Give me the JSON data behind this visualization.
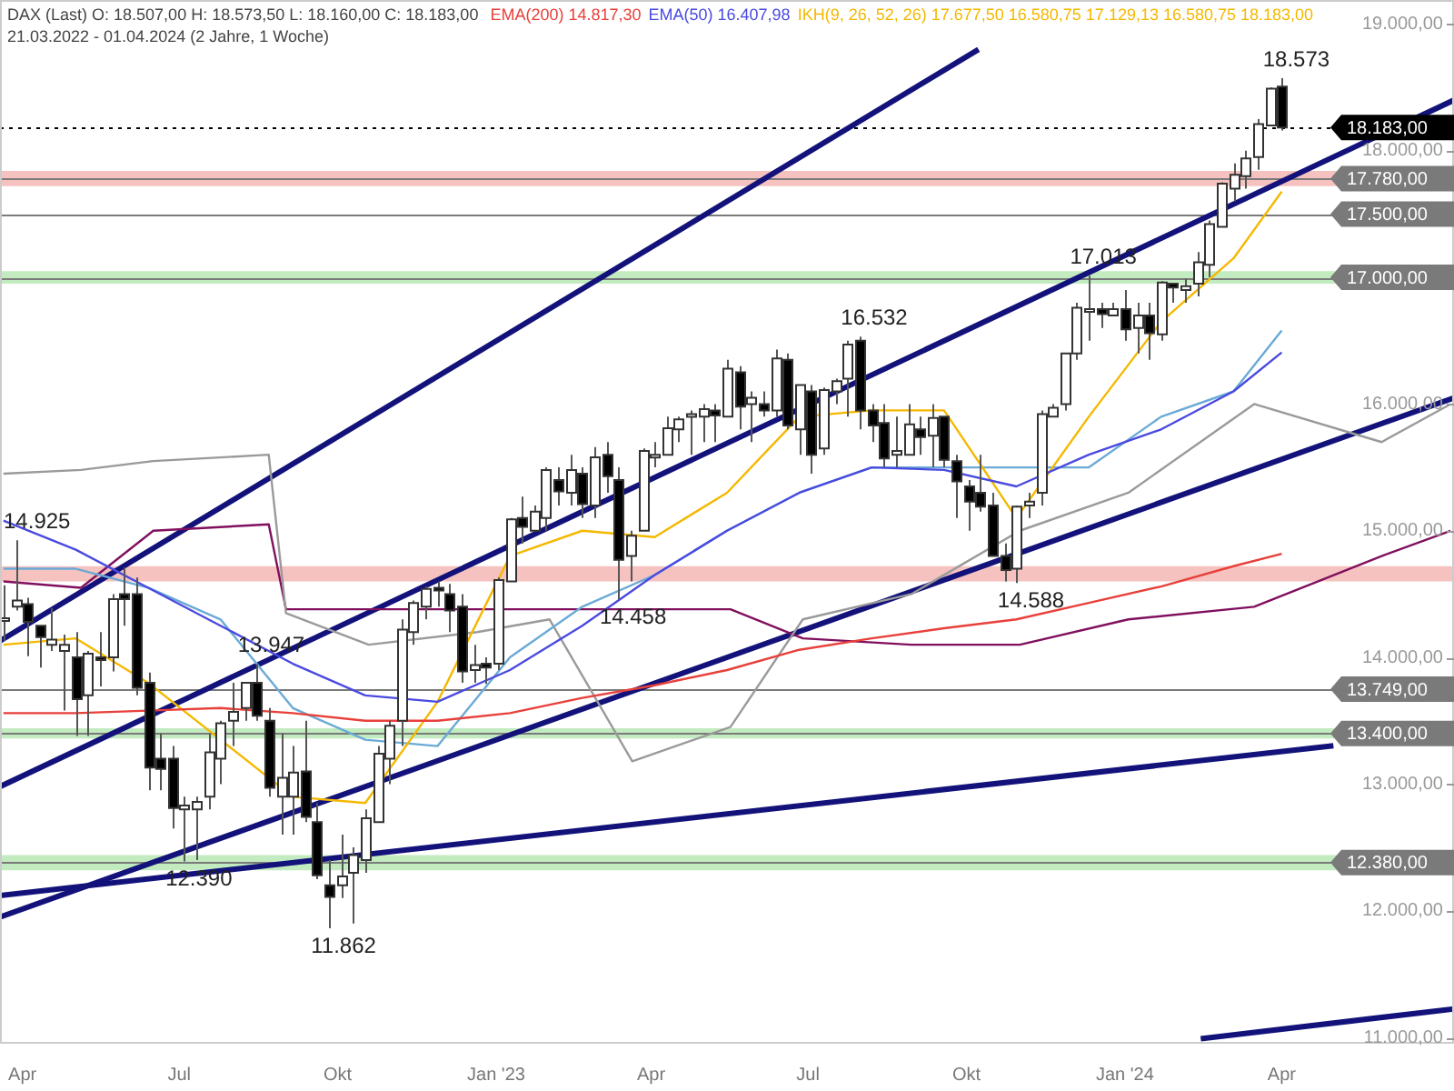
{
  "chart_data": {
    "type": "candlestick",
    "title": "DAX (Last)",
    "subtitle": "21.03.2022 - 01.04.2024 (2 Jahre, 1 Woche)",
    "annotations": [
      "O: 18.507,00 H: 18.573,50 L: 18.160,00 C: 18.183,00",
      {
        "text": "18.573",
        "x": "2024-04-01",
        "y": 18573.5
      },
      {
        "text": "14.925",
        "x": "2022-03-28",
        "y": 14925
      },
      {
        "text": "13.947",
        "x": "2022-08-15",
        "y": 13947
      },
      {
        "text": "12.390",
        "x": "2022-07-04",
        "y": 12390
      },
      {
        "text": "11.862",
        "x": "2022-09-26",
        "y": 11862
      },
      {
        "text": "14.458",
        "x": "2023-03-13",
        "y": 14458
      },
      {
        "text": "16.532",
        "x": "2023-07-31",
        "y": 16532
      },
      {
        "text": "17.013",
        "x": "2023-12-11",
        "y": 17013
      },
      {
        "text": "14.588",
        "x": "2023-10-30",
        "y": 14588
      }
    ],
    "x": [
      "2022-03-21",
      "2022-03-28",
      "2022-04-04",
      "2022-04-11",
      "2022-04-18",
      "2022-04-25",
      "2022-05-02",
      "2022-05-09",
      "2022-05-16",
      "2022-05-23",
      "2022-05-30",
      "2022-06-06",
      "2022-06-13",
      "2022-06-20",
      "2022-06-27",
      "2022-07-04",
      "2022-07-11",
      "2022-07-18",
      "2022-07-25",
      "2022-08-01",
      "2022-08-08",
      "2022-08-15",
      "2022-08-22",
      "2022-08-29",
      "2022-09-05",
      "2022-09-12",
      "2022-09-19",
      "2022-09-26",
      "2022-10-03",
      "2022-10-10",
      "2022-10-17",
      "2022-10-24",
      "2022-10-31",
      "2022-11-07",
      "2022-11-14",
      "2022-11-21",
      "2022-11-28",
      "2022-12-05",
      "2022-12-12",
      "2022-12-19",
      "2022-12-26",
      "2023-01-02",
      "2023-01-09",
      "2023-01-16",
      "2023-01-23",
      "2023-01-30",
      "2023-02-06",
      "2023-02-13",
      "2023-02-20",
      "2023-02-27",
      "2023-03-06",
      "2023-03-13",
      "2023-03-20",
      "2023-03-27",
      "2023-04-03",
      "2023-04-10",
      "2023-04-17",
      "2023-04-24",
      "2023-05-01",
      "2023-05-08",
      "2023-05-15",
      "2023-05-22",
      "2023-05-29",
      "2023-06-05",
      "2023-06-12",
      "2023-06-19",
      "2023-06-26",
      "2023-07-03",
      "2023-07-10",
      "2023-07-17",
      "2023-07-24",
      "2023-07-31",
      "2023-08-07",
      "2023-08-14",
      "2023-08-21",
      "2023-08-28",
      "2023-09-04",
      "2023-09-11",
      "2023-09-18",
      "2023-09-25",
      "2023-10-02",
      "2023-10-09",
      "2023-10-16",
      "2023-10-23",
      "2023-10-30",
      "2023-11-06",
      "2023-11-13",
      "2023-11-20",
      "2023-11-27",
      "2023-12-04",
      "2023-12-11",
      "2023-12-18",
      "2023-12-25",
      "2024-01-01",
      "2024-01-08",
      "2024-01-15",
      "2024-01-22",
      "2024-01-29",
      "2024-02-05",
      "2024-02-12",
      "2024-02-19",
      "2024-02-26",
      "2024-03-04",
      "2024-03-11",
      "2024-03-18",
      "2024-03-25",
      "2024-04-01"
    ],
    "ohlc": [
      [
        14300,
        14570,
        14130,
        14310
      ],
      [
        14400,
        14925,
        14370,
        14450
      ],
      [
        14420,
        14470,
        14010,
        14280
      ],
      [
        14250,
        14250,
        13920,
        14160
      ],
      [
        14100,
        14390,
        14050,
        14140
      ],
      [
        14050,
        14180,
        13580,
        14100
      ],
      [
        14000,
        14200,
        13380,
        13670
      ],
      [
        13700,
        14050,
        13380,
        14030
      ],
      [
        14000,
        14200,
        13770,
        13980
      ],
      [
        14000,
        14500,
        13890,
        14460
      ],
      [
        14500,
        14710,
        14250,
        14460
      ],
      [
        14500,
        14630,
        13700,
        13760
      ],
      [
        13800,
        13880,
        12950,
        13130
      ],
      [
        13200,
        13400,
        12950,
        13120
      ],
      [
        13200,
        13300,
        12650,
        12810
      ],
      [
        12800,
        12900,
        12390,
        12830
      ],
      [
        12800,
        12900,
        12400,
        12860
      ],
      [
        12900,
        13400,
        12800,
        13250
      ],
      [
        13200,
        13500,
        13000,
        13480
      ],
      [
        13500,
        13800,
        13300,
        13570
      ],
      [
        13600,
        13800,
        13500,
        13800
      ],
      [
        13800,
        13947,
        13500,
        13540
      ],
      [
        13500,
        13600,
        12900,
        12970
      ],
      [
        12900,
        13400,
        12600,
        13050
      ],
      [
        12900,
        13300,
        12600,
        13090
      ],
      [
        13100,
        13500,
        12700,
        12740
      ],
      [
        12700,
        12850,
        12250,
        12280
      ],
      [
        12200,
        12400,
        11862,
        12110
      ],
      [
        12200,
        12600,
        12100,
        12270
      ],
      [
        12300,
        12500,
        11900,
        12440
      ],
      [
        12400,
        12800,
        12300,
        12730
      ],
      [
        12700,
        13300,
        12700,
        13240
      ],
      [
        13200,
        13500,
        13000,
        13460
      ],
      [
        13500,
        14300,
        13300,
        14220
      ],
      [
        14200,
        14450,
        14100,
        14430
      ],
      [
        14400,
        14560,
        14300,
        14540
      ],
      [
        14550,
        14600,
        14400,
        14530
      ],
      [
        14500,
        14580,
        14200,
        14370
      ],
      [
        14400,
        14500,
        13800,
        13890
      ],
      [
        13900,
        14100,
        13800,
        13940
      ],
      [
        13950,
        14000,
        13790,
        13920
      ],
      [
        13950,
        14630,
        13900,
        14610
      ],
      [
        14600,
        15100,
        14600,
        15090
      ],
      [
        15100,
        15270,
        14900,
        15030
      ],
      [
        15000,
        15200,
        15000,
        15150
      ],
      [
        15100,
        15500,
        15000,
        15480
      ],
      [
        15400,
        15500,
        15200,
        15310
      ],
      [
        15300,
        15600,
        15200,
        15480
      ],
      [
        15450,
        15500,
        15100,
        15210
      ],
      [
        15200,
        15660,
        15100,
        15580
      ],
      [
        15600,
        15700,
        15300,
        15430
      ],
      [
        15400,
        15500,
        14458,
        14770
      ],
      [
        14800,
        15000,
        14600,
        14960
      ],
      [
        15000,
        15650,
        15000,
        15630
      ],
      [
        15600,
        15700,
        15500,
        15600
      ],
      [
        15600,
        15900,
        15600,
        15810
      ],
      [
        15800,
        15900,
        15700,
        15880
      ],
      [
        15900,
        15950,
        15600,
        15920
      ],
      [
        15900,
        16000,
        15700,
        15960
      ],
      [
        15950,
        16000,
        15700,
        15910
      ],
      [
        15900,
        16350,
        15900,
        16280
      ],
      [
        16250,
        16300,
        15800,
        15980
      ],
      [
        16000,
        16100,
        15700,
        16050
      ],
      [
        16000,
        16100,
        15900,
        15950
      ],
      [
        15950,
        16430,
        15900,
        16360
      ],
      [
        16350,
        16400,
        15800,
        15830
      ],
      [
        15800,
        16150,
        15600,
        16150
      ],
      [
        16100,
        16150,
        15450,
        15600
      ],
      [
        15650,
        16130,
        15600,
        16110
      ],
      [
        16100,
        16200,
        16000,
        16180
      ],
      [
        16200,
        16500,
        15900,
        16470
      ],
      [
        16500,
        16532,
        15800,
        15950
      ],
      [
        15950,
        16000,
        15700,
        15830
      ],
      [
        15850,
        16000,
        15500,
        15570
      ],
      [
        15600,
        15900,
        15500,
        15630
      ],
      [
        15600,
        16000,
        15600,
        15840
      ],
      [
        15800,
        15900,
        15600,
        15740
      ],
      [
        15750,
        16000,
        15500,
        15890
      ],
      [
        15900,
        15900,
        15500,
        15560
      ],
      [
        15550,
        15600,
        15100,
        15390
      ],
      [
        15350,
        15400,
        15000,
        15230
      ],
      [
        15300,
        15600,
        15150,
        15190
      ],
      [
        15200,
        15300,
        14800,
        14800
      ],
      [
        14800,
        14900,
        14600,
        14690
      ],
      [
        14700,
        15200,
        14588,
        15190
      ],
      [
        15200,
        15300,
        15100,
        15230
      ],
      [
        15300,
        15950,
        15200,
        15920
      ],
      [
        15900,
        16000,
        15900,
        15970
      ],
      [
        16000,
        16400,
        15950,
        16400
      ],
      [
        16400,
        16800,
        16350,
        16760
      ],
      [
        16750,
        17013,
        16500,
        16750
      ],
      [
        16750,
        16800,
        16600,
        16710
      ],
      [
        16700,
        16800,
        16700,
        16750
      ],
      [
        16750,
        16900,
        16500,
        16590
      ],
      [
        16600,
        16800,
        16400,
        16700
      ],
      [
        16700,
        16800,
        16350,
        16560
      ],
      [
        16550,
        16970,
        16500,
        16960
      ],
      [
        16950,
        16950,
        16800,
        16920
      ],
      [
        16900,
        16990,
        16800,
        16930
      ],
      [
        16950,
        17200,
        16850,
        17120
      ],
      [
        17100,
        17450,
        17000,
        17420
      ],
      [
        17400,
        17750,
        17400,
        17740
      ],
      [
        17700,
        17900,
        17600,
        17810
      ],
      [
        17800,
        18000,
        17700,
        17940
      ],
      [
        17950,
        18250,
        17850,
        18210
      ],
      [
        18200,
        18500,
        18200,
        18490
      ],
      [
        18507,
        18573.5,
        18160,
        18183
      ]
    ],
    "series": [
      {
        "type": "line",
        "name": "EMA(200) 14.817,30",
        "color": "#e8403a",
        "x": [
          "2022-03-21",
          "2022-05-02",
          "2022-06-13",
          "2022-07-25",
          "2022-09-05",
          "2022-10-17",
          "2022-11-28",
          "2023-01-09",
          "2023-02-20",
          "2023-04-03",
          "2023-05-15",
          "2023-06-26",
          "2023-08-07",
          "2023-09-18",
          "2023-10-30",
          "2023-12-11",
          "2024-01-22",
          "2024-03-04",
          "2024-04-01"
        ],
        "values": [
          13560,
          13560,
          13580,
          13600,
          13560,
          13500,
          13500,
          13560,
          13680,
          13780,
          13900,
          14060,
          14150,
          14230,
          14300,
          14430,
          14560,
          14720,
          14817.3
        ]
      },
      {
        "type": "line",
        "name": "EMA(50) 16.407,98",
        "color": "#4a4ae0",
        "x": [
          "2022-03-21",
          "2022-05-02",
          "2022-06-13",
          "2022-07-25",
          "2022-09-05",
          "2022-10-17",
          "2022-11-28",
          "2023-01-09",
          "2023-02-20",
          "2023-04-03",
          "2023-05-15",
          "2023-06-26",
          "2023-08-07",
          "2023-09-18",
          "2023-10-30",
          "2023-12-11",
          "2024-01-22",
          "2024-03-04",
          "2024-04-01"
        ],
        "values": [
          15080,
          14850,
          14550,
          14250,
          13950,
          13700,
          13650,
          13900,
          14250,
          14650,
          15000,
          15300,
          15500,
          15480,
          15350,
          15600,
          15800,
          16100,
          16407.98
        ]
      },
      {
        "type": "line",
        "name": "IKH(9, 26, 52, 26) 17.677,50 16.580,75 17.129,13 16.580,75 18.183,00",
        "color": "#f5b800",
        "x": [
          "2022-03-21",
          "2022-05-02",
          "2022-06-13",
          "2022-07-25",
          "2022-09-05",
          "2022-10-17",
          "2022-11-28",
          "2023-01-09",
          "2023-02-20",
          "2023-04-03",
          "2023-05-15",
          "2023-06-26",
          "2023-08-07",
          "2023-09-18",
          "2023-10-30",
          "2023-12-11",
          "2024-01-22",
          "2024-03-04",
          "2024-04-01"
        ],
        "values": [
          14100,
          14150,
          13800,
          13350,
          12900,
          12850,
          13650,
          14800,
          15000,
          14950,
          15300,
          15900,
          15950,
          15950,
          15100,
          15900,
          16650,
          17150,
          17677.5
        ]
      },
      {
        "type": "line",
        "color": "#6aaad6",
        "x": [
          "2022-03-21",
          "2022-05-02",
          "2022-06-13",
          "2022-07-25",
          "2022-09-05",
          "2022-10-17",
          "2022-11-28",
          "2023-01-09",
          "2023-02-20",
          "2023-04-03",
          "2023-05-15",
          "2023-06-26",
          "2023-08-07",
          "2023-09-18",
          "2023-10-30",
          "2023-12-11",
          "2024-01-22",
          "2024-03-04",
          "2024-04-01"
        ],
        "values": [
          14700,
          14700,
          14550,
          14300,
          13600,
          13350,
          13300,
          14000,
          14400,
          14650,
          15000,
          15300,
          15500,
          15500,
          15500,
          15500,
          15900,
          16100,
          16580.75
        ]
      },
      {
        "type": "line",
        "color": "#9a9a9a",
        "x": [
          "2022-03-21",
          "2022-05-05",
          "2022-06-16",
          "2022-08-22",
          "2022-09-01",
          "2022-10-19",
          "2022-12-21",
          "2023-02-01",
          "2023-03-21",
          "2023-05-17",
          "2023-06-28",
          "2023-08-30",
          "2023-11-01",
          "2024-01-03",
          "2024-03-16",
          "2024-05-29",
          "2024-07-08"
        ],
        "values": [
          15450,
          15480,
          15550,
          15600,
          14350,
          14100,
          14200,
          14300,
          13180,
          13450,
          14300,
          14500,
          15000,
          15300,
          16000,
          15700,
          16000
        ]
      },
      {
        "type": "line",
        "color": "#80105e",
        "x": [
          "2022-03-21",
          "2022-05-05",
          "2022-06-16",
          "2022-08-22",
          "2022-09-01",
          "2022-10-19",
          "2022-12-21",
          "2023-02-01",
          "2023-03-21",
          "2023-05-17",
          "2023-06-28",
          "2023-08-30",
          "2023-11-01",
          "2024-01-03",
          "2024-03-16",
          "2024-05-29",
          "2024-07-08"
        ],
        "values": [
          14600,
          14550,
          15000,
          15050,
          14380,
          14380,
          14380,
          14380,
          14380,
          14380,
          14150,
          14100,
          14100,
          14300,
          14400,
          14800,
          15000
        ]
      },
      {
        "type": "line",
        "color": "#12127a",
        "x": [
          "2022-03-19",
          "2023-10-08"
        ],
        "values": [
          14130,
          18800
        ]
      },
      {
        "type": "line",
        "color": "#12127a",
        "x": [
          "2022-03-19",
          "2024-07-10"
        ],
        "values": [
          12980,
          18400
        ]
      },
      {
        "type": "line",
        "color": "#12127a",
        "x": [
          "2022-03-19",
          "2024-07-10"
        ],
        "values": [
          11950,
          16050
        ]
      },
      {
        "type": "line",
        "color": "#12127a",
        "x": [
          "2022-03-19",
          "2024-05-01"
        ],
        "values": [
          12120,
          13303
        ]
      },
      {
        "type": "line",
        "color": "#12127a",
        "x": [
          "2024-02-14",
          "2024-07-10"
        ],
        "values": [
          10990,
          11225
        ]
      }
    ],
    "xlim": [
      "2022-03-19",
      "2024-07-10"
    ],
    "xticks": [
      {
        "value": "2022-04-01",
        "label": "Apr"
      },
      {
        "value": "2022-07-01",
        "label": "Jul"
      },
      {
        "value": "2022-10-01",
        "label": "Okt"
      },
      {
        "value": "2023-01-01",
        "label": "Jan '23"
      },
      {
        "value": "2023-04-01",
        "label": "Apr"
      },
      {
        "value": "2023-07-01",
        "label": "Jul"
      },
      {
        "value": "2023-10-01",
        "label": "Okt"
      },
      {
        "value": "2024-01-01",
        "label": "Jan '24"
      },
      {
        "value": "2024-04-01",
        "label": "Apr"
      }
    ],
    "ylim": [
      10950,
      19190
    ],
    "yticks": [
      {
        "value": 11000,
        "label": "11.000,00"
      },
      {
        "value": 12000,
        "label": "12.000,00"
      },
      {
        "value": 13000,
        "label": "13.000,00"
      },
      {
        "value": 14000,
        "label": "14.000,00"
      },
      {
        "value": 15000,
        "label": "15.000,00"
      },
      {
        "value": 16000,
        "label": "16.000,00"
      },
      {
        "value": 18000,
        "label": "18.000,00"
      },
      {
        "value": 19000,
        "label": "19.000,00"
      }
    ],
    "ref_lines": [
      {
        "axis": "y",
        "value": 18183,
        "label": "18.183,00",
        "color": "#000000",
        "line_style": "dotted"
      },
      {
        "axis": "y",
        "value": 17780,
        "label": "17.780,00",
        "color": "#7a7a7a"
      },
      {
        "axis": "y",
        "value": 17500,
        "label": "17.500,00",
        "color": "#7a7a7a"
      },
      {
        "axis": "y",
        "value": 17000,
        "label": "17.000,00",
        "color": "#7a7a7a"
      },
      {
        "axis": "y",
        "value": 13749,
        "label": "13.749,00",
        "color": "#7a7a7a"
      },
      {
        "axis": "y",
        "value": 13400,
        "label": "13.400,00",
        "color": "#7a7a7a"
      },
      {
        "axis": "y",
        "value": 12380,
        "label": "12.380,00",
        "color": "#7a7a7a"
      }
    ],
    "bands": [
      {
        "axis": "y",
        "from": 17720,
        "to": 17840,
        "color": "#f3b3b0"
      },
      {
        "axis": "y",
        "from": 16950,
        "to": 17050,
        "color": "#b4e6b0"
      },
      {
        "axis": "y",
        "from": 14600,
        "to": 14720,
        "color": "#f3b3b0"
      },
      {
        "axis": "y",
        "from": 13360,
        "to": 13440,
        "color": "#b4e6b0"
      },
      {
        "axis": "y",
        "from": 12320,
        "to": 12440,
        "color": "#b4e6b0"
      }
    ],
    "legend": "top"
  }
}
